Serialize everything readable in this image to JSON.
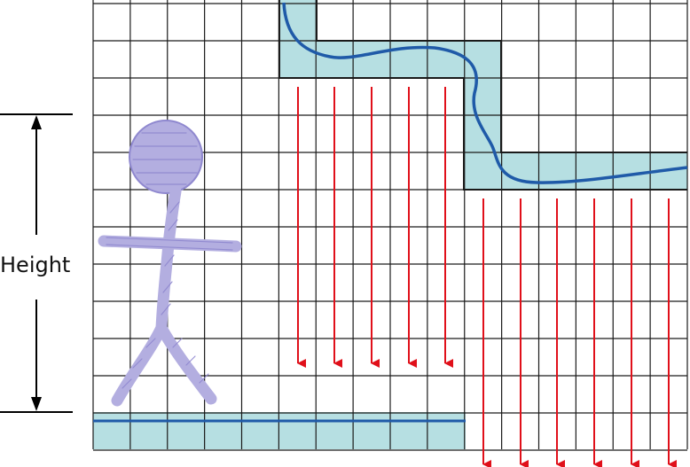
{
  "diagram": {
    "height_label": "Height",
    "colors": {
      "grid_line": "#1a1a1a",
      "highlight_fill": "#b6dfe2",
      "surface_curve": "#1f5aa8",
      "arrow": "#e0101a",
      "figure": "#b3aee0",
      "figure_stroke": "#8f88cf",
      "marker_line": "#000000"
    },
    "grid": {
      "columns": 16,
      "rows": 12
    },
    "arrow_groups": [
      {
        "name": "upper-shelf-arrows",
        "count": 5
      },
      {
        "name": "lower-shelf-arrows",
        "count": 6
      }
    ],
    "icons": [
      "stick-figure-icon",
      "double-arrow-icon"
    ]
  }
}
